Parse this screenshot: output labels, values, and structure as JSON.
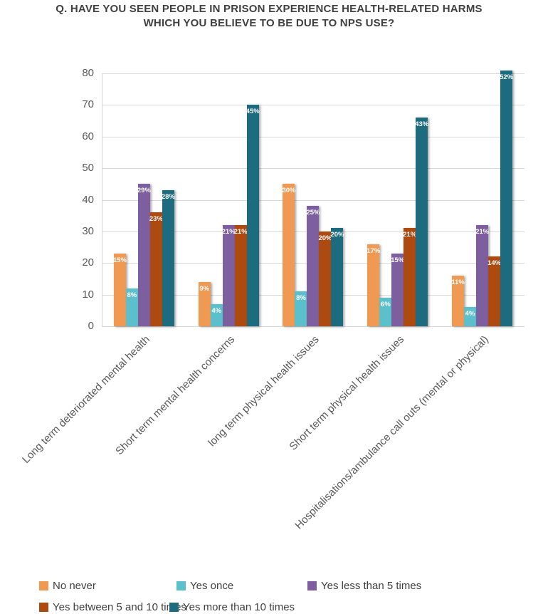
{
  "title": {
    "line1": "Q. HAVE YOU SEEN PEOPLE IN PRISON EXPERIENCE HEALTH-RELATED HARMS",
    "line2": "WHICH YOU BELIEVE TO BE DUE TO NPS USE?"
  },
  "chart_data": {
    "type": "bar",
    "title": "Q. HAVE YOU SEEN PEOPLE IN PRISON EXPERIENCE HEALTH-RELATED HARMS WHICH YOU BELIEVE TO BE DUE TO NPS USE?",
    "categories": [
      "Long term deteriorated mental health",
      "Short term mental health concerns",
      "long term physical health issues",
      "Short term physical health issues",
      "Hospitalisations/ambulance call outs (mental or physical)"
    ],
    "series": [
      {
        "name": "No never",
        "color": "#F09952",
        "values": [
          23,
          14,
          45,
          26,
          16
        ],
        "labels": [
          "15%",
          "9%",
          "30%",
          "17%",
          "11%"
        ]
      },
      {
        "name": "Yes once",
        "color": "#5BC0CB",
        "values": [
          12,
          7,
          11,
          9,
          6
        ],
        "labels": [
          "8%",
          "4%",
          "8%",
          "6%",
          "4%"
        ]
      },
      {
        "name": "Yes less than 5 times",
        "color": "#7D5FA0",
        "values": [
          45,
          32,
          38,
          23,
          32
        ],
        "labels": [
          "29%",
          "21%",
          "25%",
          "15%",
          "21%"
        ]
      },
      {
        "name": "Yes between 5 and 10 times",
        "color": "#AC4A10",
        "values": [
          36,
          32,
          30,
          31,
          22
        ],
        "labels": [
          "23%",
          "21%",
          "20%",
          "21%",
          "14%"
        ]
      },
      {
        "name": "Yes more than 10 times",
        "color": "#1D6B7E",
        "values": [
          43,
          70,
          31,
          66,
          81
        ],
        "labels": [
          "28%",
          "45%",
          "20%",
          "43%",
          "52%"
        ]
      }
    ],
    "ylim": [
      0,
      80
    ],
    "yticks": [
      0,
      10,
      20,
      30,
      40,
      50,
      60,
      70,
      80
    ],
    "xlabel": "",
    "ylabel": "",
    "grid": true,
    "legend_position": "bottom"
  }
}
